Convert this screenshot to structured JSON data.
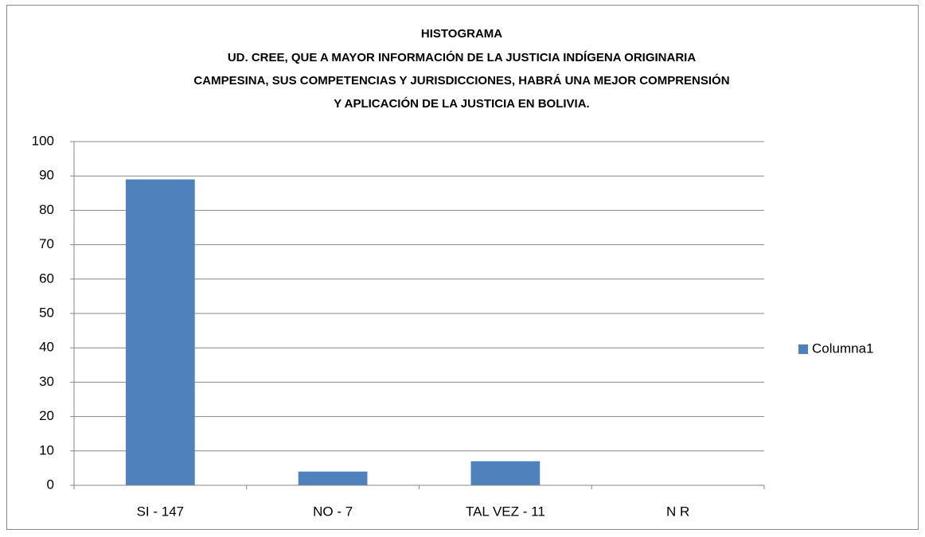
{
  "chart_data": {
    "type": "bar",
    "title": [
      "HISTOGRAMA",
      "UD. CREE, QUE A MAYOR INFORMACIÓN DE LA JUSTICIA INDÍGENA ORIGINARIA",
      "CAMPESINA, SUS COMPETENCIAS Y JURISDICCIONES, HABRÁ UNA MEJOR COMPRENSIÓN",
      "Y APLICACIÓN DE LA  JUSTICIA EN BOLIVIA."
    ],
    "categories": [
      "SI - 147",
      "NO - 7",
      "TAL VEZ - 11",
      "N R"
    ],
    "series": [
      {
        "name": "Columna1",
        "color": "#4f81bd",
        "values": [
          89,
          4,
          7,
          0
        ]
      }
    ],
    "ylim": [
      0,
      100
    ],
    "yticks": [
      0,
      10,
      20,
      30,
      40,
      50,
      60,
      70,
      80,
      90,
      100
    ],
    "grid": true,
    "legend": "right"
  }
}
